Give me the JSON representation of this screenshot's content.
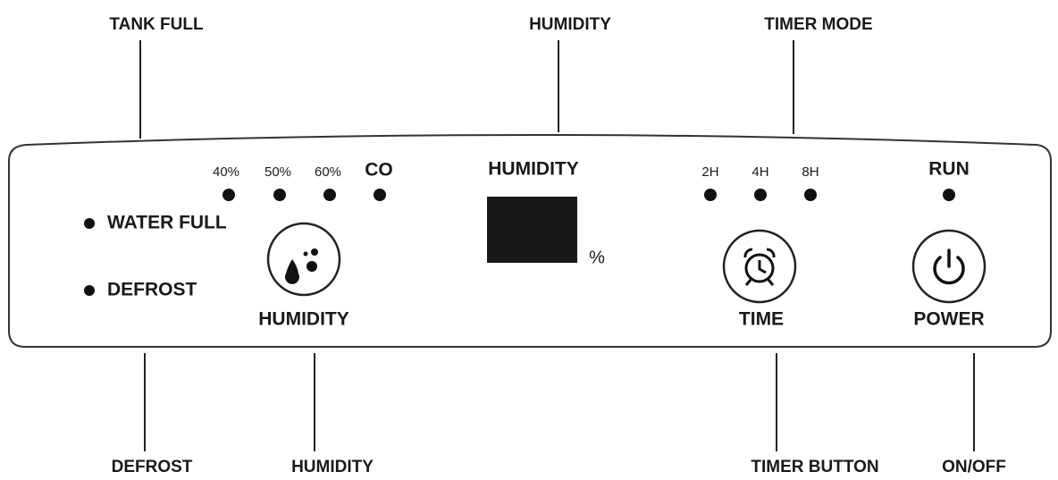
{
  "callouts_top": [
    "TANK FULL",
    "HUMIDITY",
    "TIMER MODE"
  ],
  "callouts_bottom": [
    "DEFROST",
    "HUMIDITY",
    "TIMER BUTTON",
    "ON/OFF"
  ],
  "panel": {
    "humidity_levels": [
      "40%",
      "50%",
      "60%",
      "CO"
    ],
    "indicators": [
      "WATER FULL",
      "DEFROST"
    ],
    "display": {
      "label": "HUMIDITY",
      "unit": "%"
    },
    "timer_levels": [
      "2H",
      "4H",
      "8H"
    ],
    "run": "RUN",
    "buttons": [
      "HUMIDITY",
      "TIME",
      "POWER"
    ]
  }
}
